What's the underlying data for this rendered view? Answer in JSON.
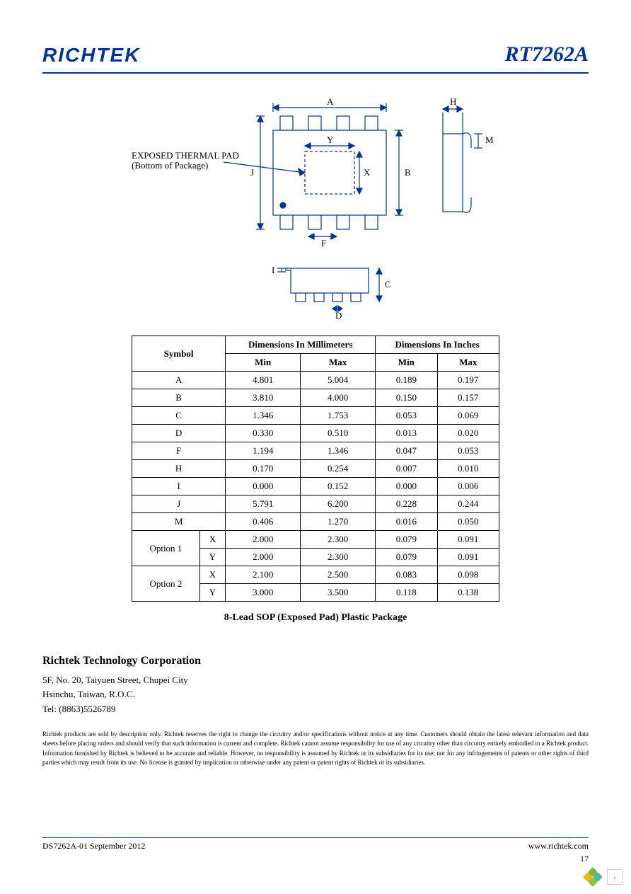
{
  "header": {
    "logo": "RICHTEK",
    "part": "RT7262A"
  },
  "diagram": {
    "thermal_pad_label1": "EXPOSED THERMAL PAD",
    "thermal_pad_label2": "(Bottom of Package)",
    "dims": [
      "A",
      "B",
      "C",
      "D",
      "F",
      "H",
      "I",
      "J",
      "M",
      "X",
      "Y"
    ],
    "stroke_color": "#003399",
    "body_fill": "#ffffff"
  },
  "table": {
    "hdr_symbol": "Symbol",
    "hdr_mm": "Dimensions In Millimeters",
    "hdr_in": "Dimensions In Inches",
    "hdr_min": "Min",
    "hdr_max": "Max",
    "opt1": "Option 1",
    "opt2": "Option 2",
    "rows": [
      {
        "sym": "A",
        "mm_min": "4.801",
        "mm_max": "5.004",
        "in_min": "0.189",
        "in_max": "0.197"
      },
      {
        "sym": "B",
        "mm_min": "3.810",
        "mm_max": "4.000",
        "in_min": "0.150",
        "in_max": "0.157"
      },
      {
        "sym": "C",
        "mm_min": "1.346",
        "mm_max": "1.753",
        "in_min": "0.053",
        "in_max": "0.069"
      },
      {
        "sym": "D",
        "mm_min": "0.330",
        "mm_max": "0.510",
        "in_min": "0.013",
        "in_max": "0.020"
      },
      {
        "sym": "F",
        "mm_min": "1.194",
        "mm_max": "1.346",
        "in_min": "0.047",
        "in_max": "0.053"
      },
      {
        "sym": "H",
        "mm_min": "0.170",
        "mm_max": "0.254",
        "in_min": "0.007",
        "in_max": "0.010"
      },
      {
        "sym": "I",
        "mm_min": "0.000",
        "mm_max": "0.152",
        "in_min": "0.000",
        "in_max": "0.006"
      },
      {
        "sym": "J",
        "mm_min": "5.791",
        "mm_max": "6.200",
        "in_min": "0.228",
        "in_max": "0.244"
      },
      {
        "sym": "M",
        "mm_min": "0.406",
        "mm_max": "1.270",
        "in_min": "0.016",
        "in_max": "0.050"
      }
    ],
    "opt1_rows": [
      {
        "sym": "X",
        "mm_min": "2.000",
        "mm_max": "2.300",
        "in_min": "0.079",
        "in_max": "0.091"
      },
      {
        "sym": "Y",
        "mm_min": "2.000",
        "mm_max": "2.300",
        "in_min": "0.079",
        "in_max": "0.091"
      }
    ],
    "opt2_rows": [
      {
        "sym": "X",
        "mm_min": "2.100",
        "mm_max": "2.500",
        "in_min": "0.083",
        "in_max": "0.098"
      },
      {
        "sym": "Y",
        "mm_min": "3.000",
        "mm_max": "3.500",
        "in_min": "0.118",
        "in_max": "0.138"
      }
    ]
  },
  "caption": "8-Lead SOP (Exposed Pad) Plastic Package",
  "company": {
    "name": "Richtek Technology Corporation",
    "addr1": "5F, No. 20, Taiyuen Street, Chupei City",
    "addr2": "Hsinchu, Taiwan, R.O.C.",
    "tel": "Tel: (8863)5526789"
  },
  "legal": "Richtek products are sold by description only. Richtek reserves the right to change the circuitry and/or specifications without notice at any time. Customers should obtain the latest relevant information and data sheets before placing orders and should verify that such information is current and complete. Richtek cannot assume responsibility for use of any circuitry other than circuitry entirely embodied in a Richtek product. Information furnished by Richtek is believed to be accurate and reliable. However, no responsibility is assumed by Richtek or its subsidiaries for its use; nor for any infringements of patents or other rights of third parties which may result from its use. No license is granted by implication or otherwise under any patent or patent rights of Richtek or its subsidiaries.",
  "footer": {
    "left": "DS7262A-01   September  2012",
    "right": "www.richtek.com",
    "page": "17"
  },
  "nav": {
    "chev": "›"
  }
}
